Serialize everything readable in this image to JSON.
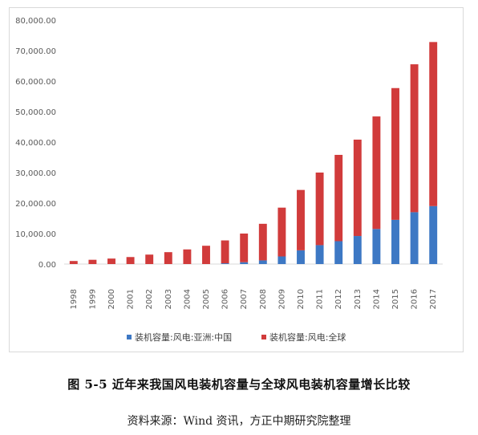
{
  "chart_data": {
    "type": "bar",
    "stacked": true,
    "categories": [
      "1998",
      "1999",
      "2000",
      "2001",
      "2002",
      "2003",
      "2004",
      "2005",
      "2006",
      "2007",
      "2008",
      "2009",
      "2010",
      "2011",
      "2012",
      "2013",
      "2014",
      "2015",
      "2016",
      "2017"
    ],
    "series": [
      {
        "name": "装机容量:风电:亚洲:中国",
        "color": "#3d78c4",
        "values": [
          0,
          0,
          0,
          0,
          0,
          0,
          0,
          0,
          250,
          600,
          1200,
          2500,
          4500,
          6200,
          7500,
          9200,
          11500,
          14500,
          17000,
          19000
        ]
      },
      {
        "name": "装机容量:风电:全球",
        "color": "#d13b3b",
        "values": [
          1000,
          1400,
          1800,
          2300,
          3100,
          3900,
          4800,
          6000,
          7500,
          9400,
          12000,
          16000,
          19800,
          23800,
          28300,
          31600,
          36900,
          43200,
          48500,
          53800
        ]
      }
    ],
    "yticks": [
      "0.00",
      "10,000.00",
      "20,000.00",
      "30,000.00",
      "40,000.00",
      "50,000.00",
      "60,000.00",
      "70,000.00",
      "80,000.00"
    ],
    "ylim": [
      0,
      80000
    ],
    "grid": false,
    "legend_position": "bottom"
  },
  "caption": "图 5-5  近年来我国风电装机容量与全球风电装机容量增长比较",
  "source": "资料来源：Wind 资讯，方正中期研究院整理"
}
